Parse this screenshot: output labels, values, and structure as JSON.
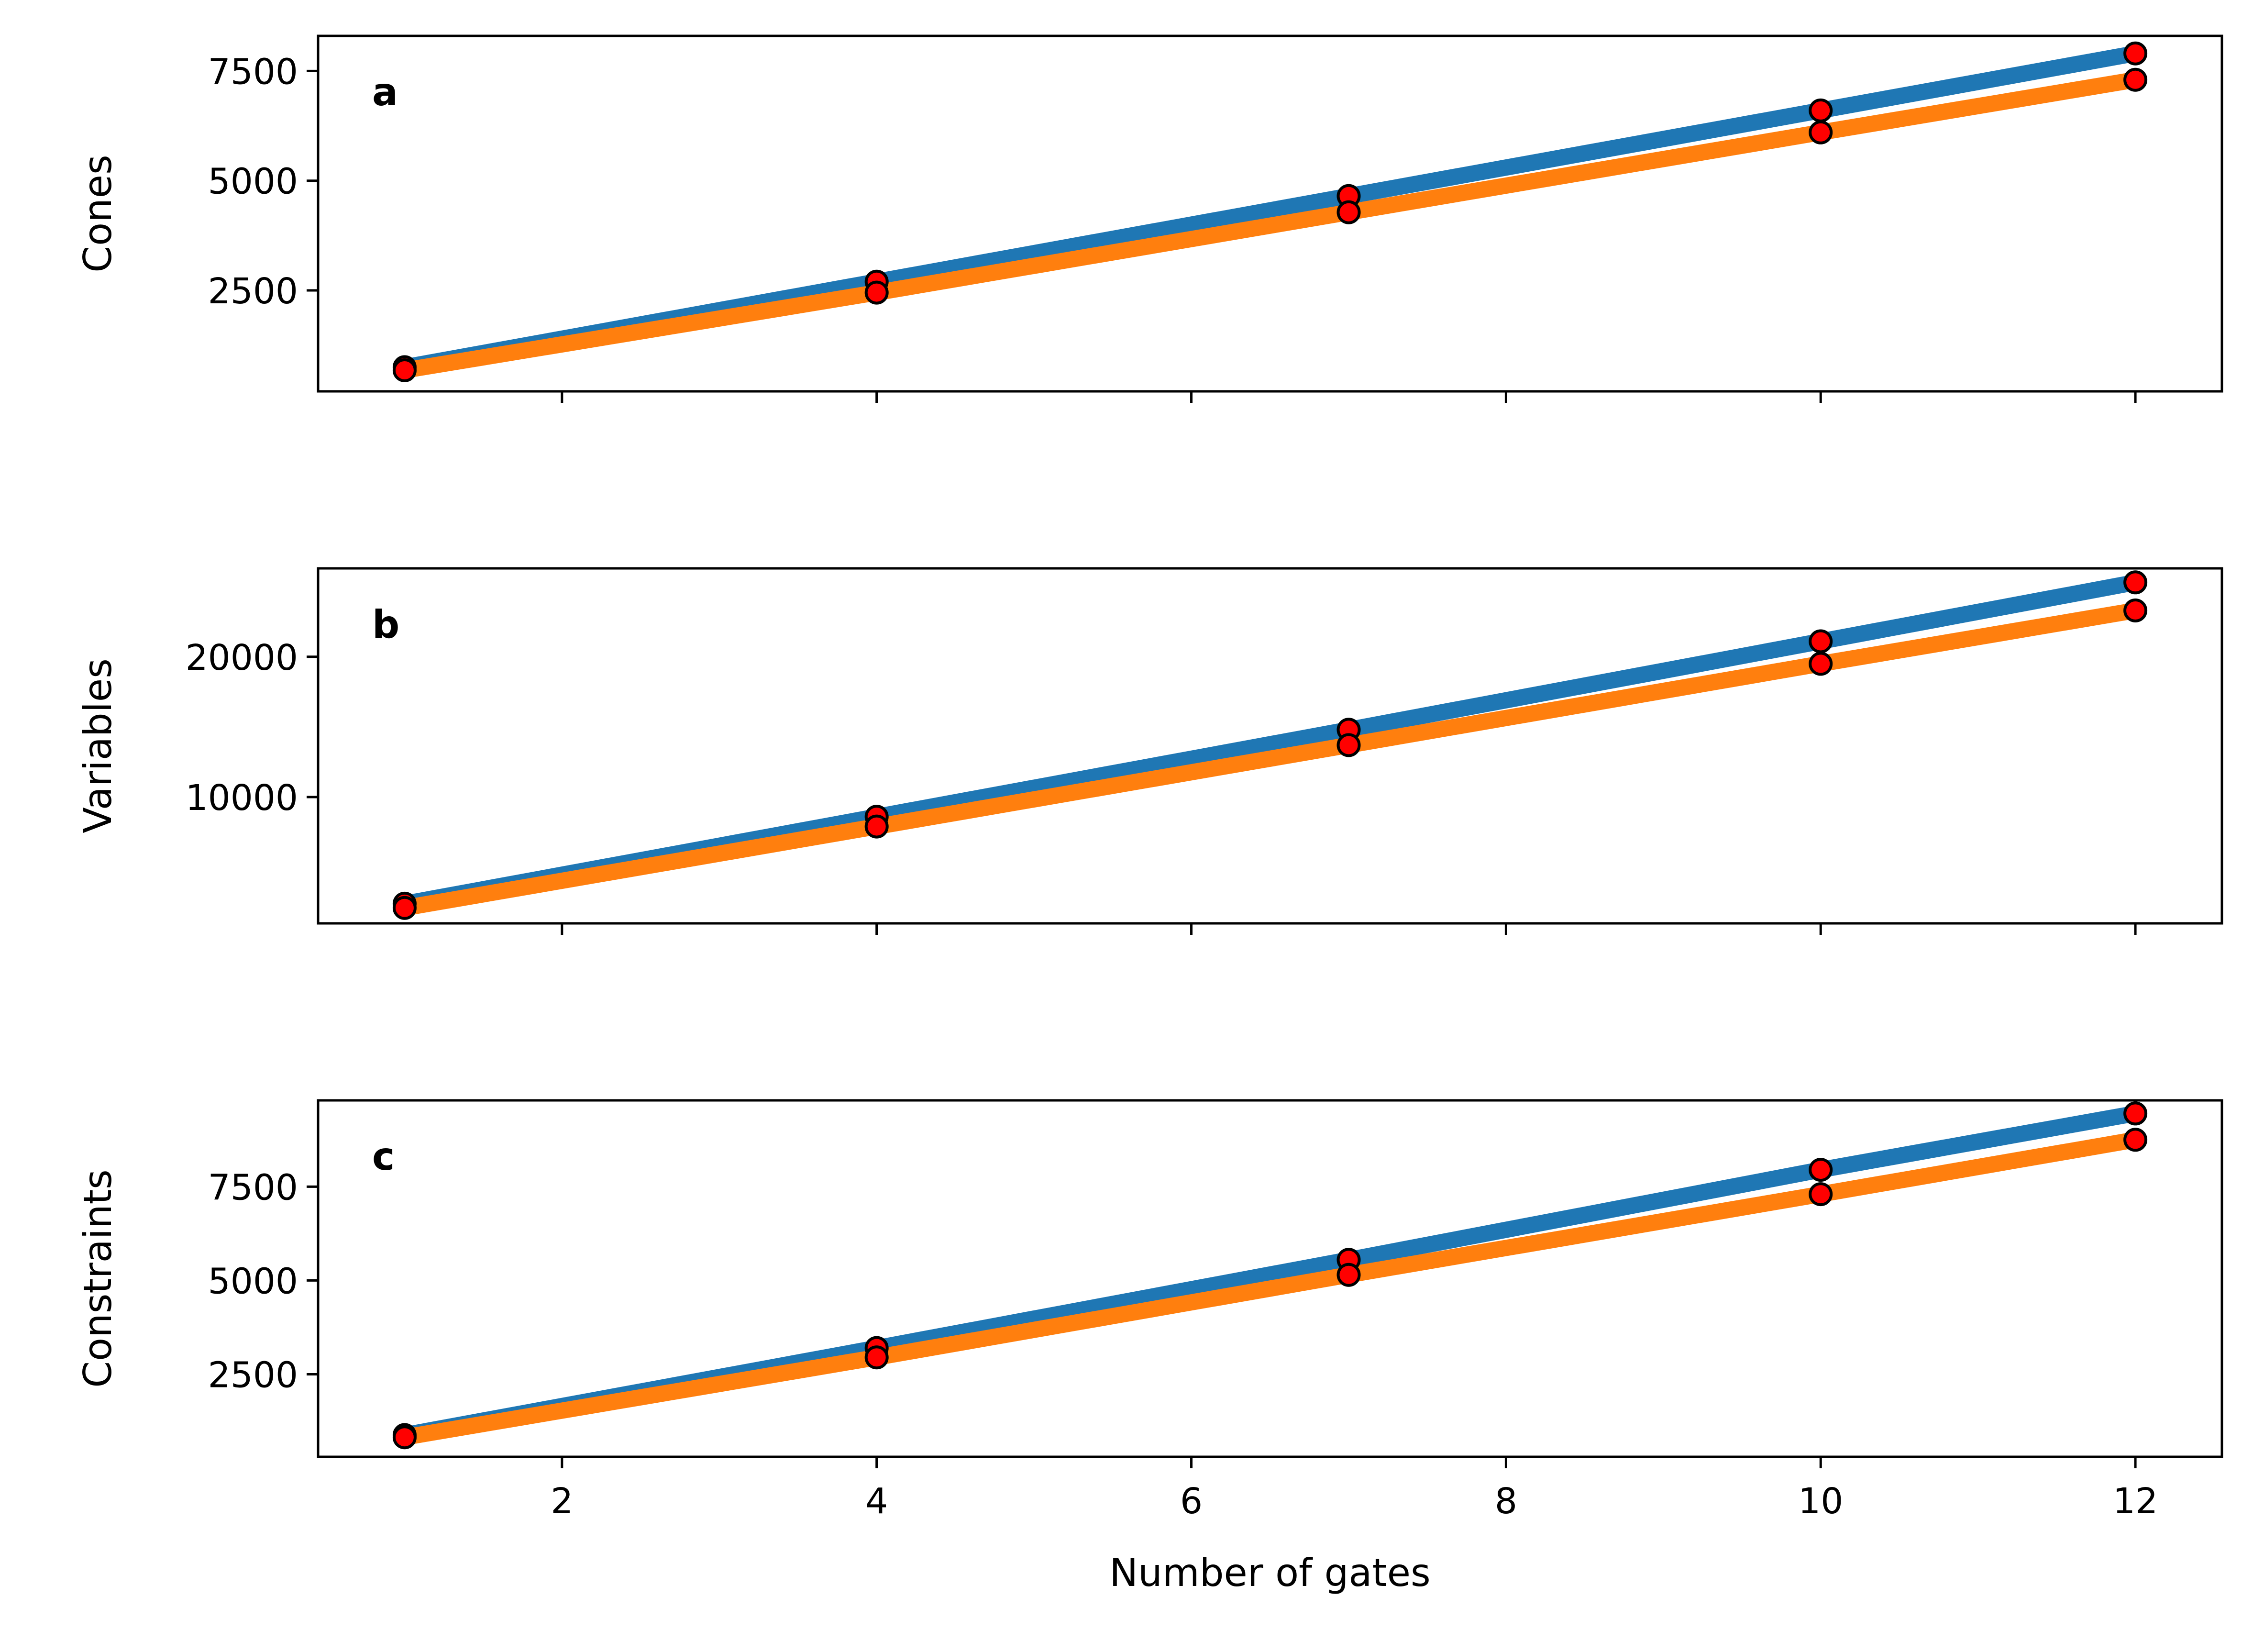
{
  "chart_data": [
    {
      "type": "line",
      "panel_label": "a",
      "ylabel": "Cones",
      "xlabel": "",
      "x": [
        1,
        4,
        7,
        10,
        12
      ],
      "xlim": [
        0.45,
        12.55
      ],
      "ylim": [
        200,
        8300
      ],
      "yticks": [
        2500,
        5000,
        7500
      ],
      "xticks": [
        2,
        4,
        6,
        8,
        10,
        12
      ],
      "show_xtick_labels": false,
      "grid": false,
      "marker": {
        "face": "#ff0000",
        "edge": "#000000"
      },
      "series": [
        {
          "color": "#1f77b4",
          "values": [
            750,
            2700,
            4650,
            6600,
            7900
          ]
        },
        {
          "color": "#ff7f0e",
          "values": [
            680,
            2450,
            4280,
            6100,
            7300
          ]
        }
      ]
    },
    {
      "type": "line",
      "panel_label": "b",
      "ylabel": "Variables",
      "xlabel": "",
      "x": [
        1,
        4,
        7,
        10,
        12
      ],
      "xlim": [
        0.45,
        12.55
      ],
      "ylim": [
        1000,
        26300
      ],
      "yticks": [
        10000,
        20000
      ],
      "xticks": [
        2,
        4,
        6,
        8,
        10,
        12
      ],
      "show_xtick_labels": false,
      "grid": false,
      "marker": {
        "face": "#ff0000",
        "edge": "#000000"
      },
      "series": [
        {
          "color": "#1f77b4",
          "values": [
            2400,
            8600,
            14800,
            21100,
            25300
          ]
        },
        {
          "color": "#ff7f0e",
          "values": [
            2100,
            7900,
            13700,
            19500,
            23300
          ]
        }
      ]
    },
    {
      "type": "line",
      "panel_label": "c",
      "ylabel": "Constraints",
      "xlabel": "Number of gates",
      "x": [
        1,
        4,
        7,
        10,
        12
      ],
      "xlim": [
        0.45,
        12.55
      ],
      "ylim": [
        300,
        9800
      ],
      "yticks": [
        2500,
        5000,
        7500
      ],
      "xticks": [
        2,
        4,
        6,
        8,
        10,
        12
      ],
      "xtick_labels": [
        "2",
        "4",
        "6",
        "8",
        "10",
        "12"
      ],
      "show_xtick_labels": true,
      "grid": false,
      "marker": {
        "face": "#ff0000",
        "edge": "#000000"
      },
      "series": [
        {
          "color": "#1f77b4",
          "values": [
            880,
            3200,
            5550,
            7950,
            9450
          ]
        },
        {
          "color": "#ff7f0e",
          "values": [
            820,
            2950,
            5150,
            7300,
            8750
          ]
        }
      ]
    }
  ]
}
